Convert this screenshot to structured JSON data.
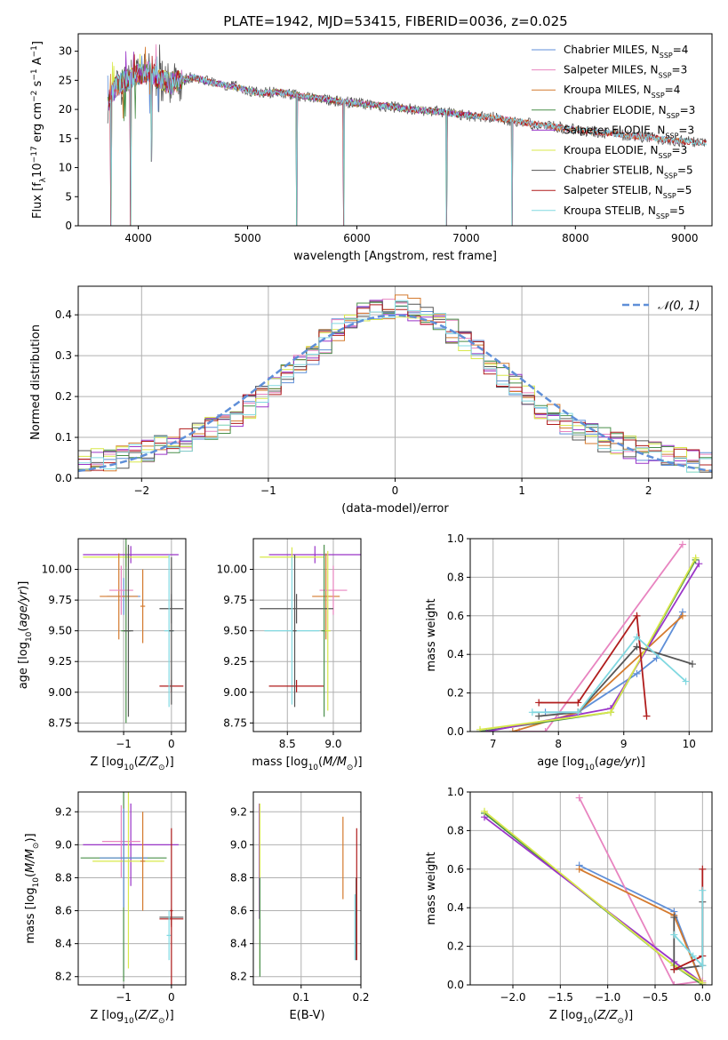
{
  "figure": {
    "title": "PLATE=1942, MJD=53415, FIBERID=0036, z=0.025"
  },
  "legend_colors": [
    "#5f8fd8",
    "#e884c0",
    "#d47a2e",
    "#4a8f4a",
    "#9a35c8",
    "#d8e84a",
    "#555555",
    "#b01c1c",
    "#80d8e0"
  ],
  "chart_data": [
    {
      "id": "spectrum",
      "type": "line",
      "xlabel": "wavelength [Angstrom, rest frame]",
      "ylabel": "Flux [f_λ 10^-17 erg cm^-2 s^-1 A^-1]",
      "xlim": [
        3450,
        9250
      ],
      "ylim": [
        0,
        33
      ],
      "xticks": [
        4000,
        5000,
        6000,
        7000,
        8000,
        9000
      ],
      "yticks": [
        0,
        5,
        10,
        15,
        20,
        25,
        30
      ],
      "grid": false,
      "legend_position": "top-right",
      "continuum": [
        [
          3720,
          21
        ],
        [
          3800,
          24
        ],
        [
          3900,
          25
        ],
        [
          4000,
          26
        ],
        [
          4100,
          26.5
        ],
        [
          4200,
          25
        ],
        [
          4300,
          24.5
        ],
        [
          4500,
          25.5
        ],
        [
          4700,
          24.5
        ],
        [
          4900,
          23.8
        ],
        [
          5100,
          22.8
        ],
        [
          5300,
          23
        ],
        [
          5500,
          22.3
        ],
        [
          5800,
          21.5
        ],
        [
          6000,
          21
        ],
        [
          6300,
          20.5
        ],
        [
          6500,
          20
        ],
        [
          6800,
          19.5
        ],
        [
          7000,
          19
        ],
        [
          7300,
          18.5
        ],
        [
          7600,
          17.5
        ],
        [
          8000,
          16.5
        ],
        [
          8500,
          15.5
        ],
        [
          9000,
          14.5
        ],
        [
          9200,
          14.2
        ]
      ],
      "dips": [
        [
          3750,
          0
        ],
        [
          3930,
          0
        ],
        [
          4120,
          11
        ],
        [
          5450,
          0
        ],
        [
          5880,
          0
        ],
        [
          6820,
          0
        ],
        [
          7420,
          0
        ]
      ],
      "series": [
        {
          "name": "Chabrier MILES, N_SSP=4"
        },
        {
          "name": "Salpeter MILES, N_SSP=3"
        },
        {
          "name": "Kroupa MILES, N_SSP=4"
        },
        {
          "name": "Chabrier ELODIE, N_SSP=3"
        },
        {
          "name": "Salpeter ELODIE, N_SSP=3"
        },
        {
          "name": "Kroupa ELODIE, N_SSP=3"
        },
        {
          "name": "Chabrier STELIB, N_SSP=5"
        },
        {
          "name": "Salpeter STELIB, N_SSP=5"
        },
        {
          "name": "Kroupa STELIB, N_SSP=5"
        }
      ]
    },
    {
      "id": "residuals",
      "type": "line",
      "xlabel": "(data-model)/error",
      "ylabel": "Normed distribution",
      "xlim": [
        -2.5,
        2.5
      ],
      "ylim": [
        0,
        0.47
      ],
      "xticks": [
        -2,
        -1,
        0,
        1,
        2
      ],
      "yticks": [
        0.0,
        0.1,
        0.2,
        0.3,
        0.4
      ],
      "grid": true,
      "legend_position": "top-right",
      "reference": {
        "name": "𝒩(0, 1)",
        "mean": 0,
        "sigma": 1
      },
      "bin_width": 0.1
    },
    {
      "id": "age_vs_Z",
      "type": "scatter",
      "xlabel": "Z [log10(Z/Z⊙)]",
      "ylabel": "age  [log10(age/yr)]",
      "xlim": [
        -1.95,
        0.3
      ],
      "ylim": [
        8.68,
        10.25
      ],
      "xticks": [
        -1,
        0
      ],
      "yticks": [
        8.75,
        9.0,
        9.25,
        9.5,
        9.75,
        10.0
      ],
      "grid": true,
      "points": [
        {
          "x": -0.85,
          "xerr": 1.0,
          "y": 10.12,
          "yerr": 0.07,
          "c": 4
        },
        {
          "x": -0.95,
          "xerr": 0.9,
          "y": 10.1,
          "yerr": 0.08,
          "c": 5
        },
        {
          "x": -1.0,
          "xerr": 0.35,
          "y": 9.78,
          "yerr": 0.15,
          "c": 0
        },
        {
          "x": -1.1,
          "xerr": 0.4,
          "y": 9.78,
          "yerr": 0.35,
          "c": 2
        },
        {
          "x": -1.05,
          "xerr": 0.25,
          "y": 9.83,
          "yerr": 0.2,
          "c": 1
        },
        {
          "x": -0.95,
          "xerr": 0.1,
          "y": 9.5,
          "yerr": 0.75,
          "c": 3
        },
        {
          "x": -0.9,
          "xerr": 0.1,
          "y": 9.5,
          "yerr": 0.7,
          "c": 6
        },
        {
          "x": -0.6,
          "xerr": 0.05,
          "y": 9.7,
          "yerr": 0.3,
          "c": 2
        },
        {
          "x": 0.0,
          "xerr": 0.25,
          "y": 9.68,
          "yerr": 0.12,
          "c": 6
        },
        {
          "x": 0.0,
          "xerr": 0.25,
          "y": 9.05,
          "yerr": 0.05,
          "c": 7
        },
        {
          "x": -0.05,
          "xerr": 0.1,
          "y": 9.5,
          "yerr": 0.62,
          "c": 8
        },
        {
          "x": 0.0,
          "xerr": 0.05,
          "y": 9.5,
          "yerr": 0.6,
          "c": 6
        }
      ]
    },
    {
      "id": "age_vs_mass",
      "type": "scatter",
      "xlabel": "mass [log10(M/M⊙)]",
      "ylabel": "",
      "xlim": [
        8.13,
        9.3
      ],
      "ylim": [
        8.68,
        10.25
      ],
      "xticks": [
        8.5,
        9.0
      ],
      "yticks": [
        8.75,
        9.0,
        9.25,
        9.5,
        9.75,
        10.0
      ],
      "grid": true,
      "points": [
        {
          "x": 8.8,
          "xerr": 0.5,
          "y": 10.12,
          "yerr": 0.07,
          "c": 4
        },
        {
          "x": 8.55,
          "xerr": 0.35,
          "y": 10.1,
          "yerr": 0.08,
          "c": 5
        },
        {
          "x": 8.92,
          "xerr": 0.15,
          "y": 9.78,
          "yerr": 0.35,
          "c": 2
        },
        {
          "x": 9.0,
          "xerr": 0.15,
          "y": 9.83,
          "yerr": 0.2,
          "c": 1
        },
        {
          "x": 8.6,
          "xerr": 0.4,
          "y": 9.68,
          "yerr": 0.12,
          "c": 6
        },
        {
          "x": 8.55,
          "xerr": 0.3,
          "y": 9.5,
          "yerr": 0.6,
          "c": 8
        },
        {
          "x": 8.6,
          "xerr": 0.3,
          "y": 9.05,
          "yerr": 0.05,
          "c": 7
        },
        {
          "x": 8.9,
          "xerr": 0.03,
          "y": 9.5,
          "yerr": 0.7,
          "c": 3
        },
        {
          "x": 8.94,
          "xerr": 0.03,
          "y": 9.5,
          "yerr": 0.65,
          "c": 5
        },
        {
          "x": 8.58,
          "xerr": 0.02,
          "y": 9.5,
          "yerr": 0.62,
          "c": 6
        }
      ]
    },
    {
      "id": "weight_vs_age",
      "type": "line",
      "xlabel": "age  [log10(age/yr)]",
      "ylabel": "mass weight",
      "xlim": [
        6.65,
        10.35
      ],
      "ylim": [
        0,
        1.0
      ],
      "xticks": [
        7,
        8,
        9,
        10
      ],
      "yticks": [
        0.0,
        0.2,
        0.4,
        0.6,
        0.8,
        1.0
      ],
      "grid": true,
      "series": [
        {
          "c": 0,
          "points": [
            [
              7.8,
              0.1
            ],
            [
              8.3,
              0.1
            ],
            [
              9.2,
              0.3
            ],
            [
              9.5,
              0.38
            ],
            [
              9.9,
              0.62
            ]
          ]
        },
        {
          "c": 1,
          "points": [
            [
              7.4,
              0.0
            ],
            [
              7.8,
              0.0
            ],
            [
              9.9,
              0.97
            ]
          ]
        },
        {
          "c": 2,
          "points": [
            [
              7.3,
              0.0
            ],
            [
              8.3,
              0.1
            ],
            [
              9.9,
              0.6
            ]
          ]
        },
        {
          "c": 3,
          "points": [
            [
              6.8,
              0.0
            ],
            [
              8.8,
              0.1
            ],
            [
              10.1,
              0.89
            ]
          ]
        },
        {
          "c": 4,
          "points": [
            [
              6.9,
              0.0
            ],
            [
              8.8,
              0.12
            ],
            [
              10.15,
              0.87
            ]
          ]
        },
        {
          "c": 5,
          "points": [
            [
              6.8,
              0.01
            ],
            [
              8.8,
              0.1
            ],
            [
              10.1,
              0.9
            ]
          ]
        },
        {
          "c": 6,
          "points": [
            [
              7.7,
              0.08
            ],
            [
              8.3,
              0.1
            ],
            [
              9.2,
              0.44
            ],
            [
              10.05,
              0.35
            ]
          ]
        },
        {
          "c": 7,
          "points": [
            [
              7.7,
              0.15
            ],
            [
              8.3,
              0.15
            ],
            [
              9.2,
              0.6
            ],
            [
              9.35,
              0.08
            ]
          ]
        },
        {
          "c": 8,
          "points": [
            [
              7.6,
              0.1
            ],
            [
              8.3,
              0.1
            ],
            [
              9.2,
              0.49
            ],
            [
              9.95,
              0.26
            ]
          ]
        }
      ]
    },
    {
      "id": "mass_vs_Z",
      "type": "scatter",
      "xlabel": "Z [log10(Z/Z⊙)]",
      "ylabel": "mass [log10(M/M⊙)]",
      "xlim": [
        -1.95,
        0.3
      ],
      "ylim": [
        8.15,
        9.32
      ],
      "xticks": [
        -1,
        0
      ],
      "yticks": [
        8.2,
        8.4,
        8.6,
        8.8,
        9.0,
        9.2
      ],
      "grid": true,
      "points": [
        {
          "x": -0.85,
          "xerr": 1.0,
          "y": 9.0,
          "yerr": 0.25,
          "c": 4
        },
        {
          "x": -1.05,
          "xerr": 0.4,
          "y": 9.02,
          "yerr": 0.22,
          "c": 1
        },
        {
          "x": -1.0,
          "xerr": 0.9,
          "y": 8.92,
          "yerr": 0.75,
          "c": 3
        },
        {
          "x": -0.9,
          "xerr": 0.75,
          "y": 8.9,
          "yerr": 0.65,
          "c": 5
        },
        {
          "x": -1.0,
          "xerr": 0.5,
          "y": 8.92,
          "yerr": 0.3,
          "c": 0
        },
        {
          "x": -0.6,
          "xerr": 0.05,
          "y": 8.9,
          "yerr": 0.3,
          "c": 2
        },
        {
          "x": 0.0,
          "xerr": 0.25,
          "y": 8.56,
          "yerr": 0.05,
          "c": 6
        },
        {
          "x": 0.0,
          "xerr": 0.25,
          "y": 8.55,
          "yerr": 0.05,
          "c": 7
        },
        {
          "x": -0.05,
          "xerr": 0.05,
          "y": 8.45,
          "yerr": 0.15,
          "c": 8
        },
        {
          "x": 0.0,
          "xerr": 0.03,
          "y": 8.6,
          "yerr": 0.5,
          "c": 7
        }
      ]
    },
    {
      "id": "mass_vs_ebv",
      "type": "scatter",
      "xlabel": "E(B-V)",
      "ylabel": "",
      "xlim": [
        0.02,
        0.2
      ],
      "ylim": [
        8.15,
        9.32
      ],
      "xticks": [
        0.1,
        0.2
      ],
      "yticks": [
        8.2,
        8.4,
        8.6,
        8.8,
        9.0,
        9.2
      ],
      "grid": true,
      "points": [
        {
          "x": 0.03,
          "xerr": 0,
          "y": 8.9,
          "yerr": 0.35,
          "c": 4
        },
        {
          "x": 0.031,
          "xerr": 0,
          "y": 8.75,
          "yerr": 0.5,
          "c": 5
        },
        {
          "x": 0.031,
          "xerr": 0,
          "y": 8.5,
          "yerr": 0.3,
          "c": 3
        },
        {
          "x": 0.17,
          "xerr": 0,
          "y": 8.92,
          "yerr": 0.25,
          "c": 2
        },
        {
          "x": 0.19,
          "xerr": 0,
          "y": 8.5,
          "yerr": 0.2,
          "c": 8
        },
        {
          "x": 0.192,
          "xerr": 0,
          "y": 8.55,
          "yerr": 0.25,
          "c": 6
        },
        {
          "x": 0.193,
          "xerr": 0,
          "y": 8.7,
          "yerr": 0.4,
          "c": 7
        }
      ]
    },
    {
      "id": "weight_vs_Z",
      "type": "line",
      "xlabel": "Z [log10(Z/Z⊙)]",
      "ylabel": "mass weight",
      "xlim": [
        -2.45,
        0.1
      ],
      "ylim": [
        0,
        1.0
      ],
      "xticks": [
        -2.0,
        -1.5,
        -1.0,
        -0.5,
        0.0
      ],
      "yticks": [
        0.0,
        0.2,
        0.4,
        0.6,
        0.8,
        1.0
      ],
      "grid": true,
      "series": [
        {
          "c": 0,
          "points": [
            [
              -1.3,
              0.62
            ],
            [
              -0.3,
              0.38
            ],
            [
              0.0,
              0.0
            ]
          ]
        },
        {
          "c": 1,
          "points": [
            [
              -1.3,
              0.97
            ],
            [
              -0.3,
              0.0
            ],
            [
              0.0,
              0.02
            ]
          ]
        },
        {
          "c": 2,
          "points": [
            [
              -1.3,
              0.6
            ],
            [
              -0.3,
              0.36
            ],
            [
              0.0,
              0.0
            ]
          ]
        },
        {
          "c": 3,
          "points": [
            [
              -2.3,
              0.89
            ],
            [
              -0.3,
              0.1
            ],
            [
              0.0,
              0.0
            ]
          ]
        },
        {
          "c": 4,
          "points": [
            [
              -2.3,
              0.87
            ],
            [
              -0.3,
              0.12
            ],
            [
              0.0,
              0.01
            ]
          ]
        },
        {
          "c": 5,
          "points": [
            [
              -2.3,
              0.9
            ],
            [
              -0.3,
              0.1
            ],
            [
              0.0,
              0.01
            ]
          ]
        },
        {
          "c": 6,
          "points": [
            [
              -0.3,
              0.35
            ],
            [
              -0.3,
              0.08
            ],
            [
              0.0,
              0.1
            ],
            [
              0.0,
              0.43
            ]
          ]
        },
        {
          "c": 7,
          "points": [
            [
              -0.3,
              0.08
            ],
            [
              0.0,
              0.15
            ],
            [
              0.0,
              0.6
            ]
          ]
        },
        {
          "c": 8,
          "points": [
            [
              -0.3,
              0.26
            ],
            [
              -0.1,
              0.15
            ],
            [
              0.0,
              0.1
            ],
            [
              0.0,
              0.49
            ]
          ]
        }
      ]
    }
  ]
}
